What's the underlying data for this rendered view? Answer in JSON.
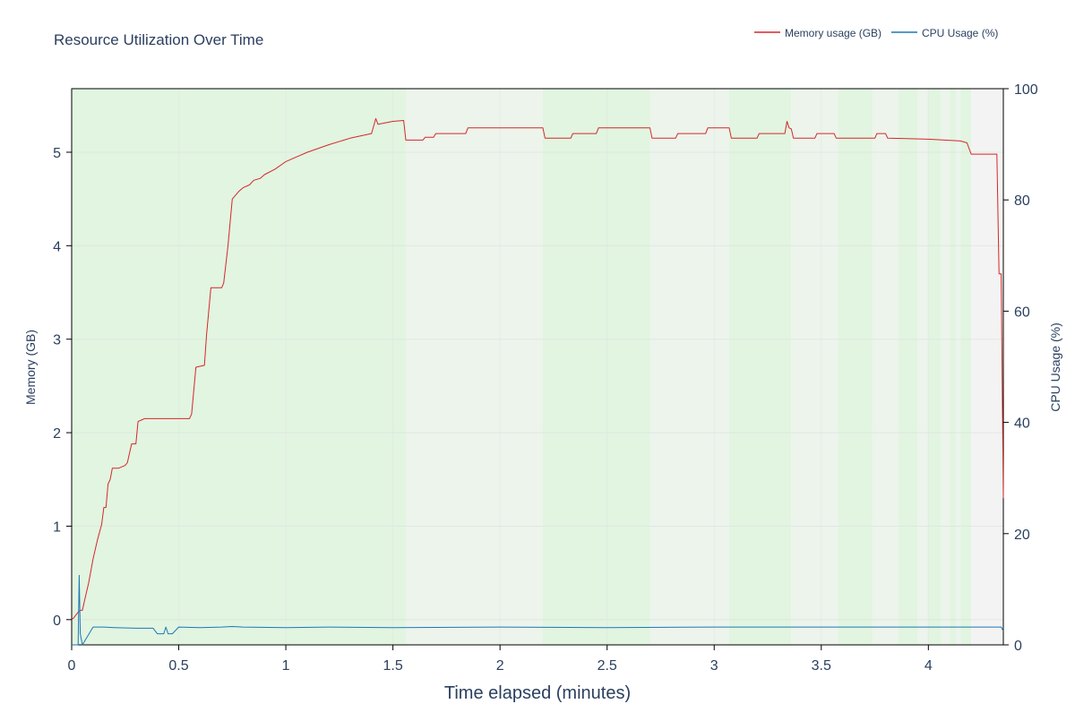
{
  "chart_data": {
    "type": "line",
    "title": "Resource Utilization Over Time",
    "xlabel": "Time elapsed (minutes)",
    "ylabel": "Memory (GB)",
    "y2label": "CPU Usage (%)",
    "xlim": [
      0,
      4.35
    ],
    "ylim": [
      -0.27,
      5.68
    ],
    "y2lim": [
      0,
      100
    ],
    "x_ticks": [
      0,
      0.5,
      1,
      1.5,
      2,
      2.5,
      3,
      3.5,
      4
    ],
    "y_ticks": [
      0,
      1,
      2,
      3,
      4,
      5
    ],
    "y2_ticks": [
      0,
      20,
      40,
      60,
      80,
      100
    ],
    "grid": true,
    "legend_position": "top-right",
    "series": [
      {
        "name": "Memory usage (GB)",
        "axis": "left",
        "color": "#d62728",
        "x": [
          0,
          0.01,
          0.02,
          0.03,
          0.04,
          0.05,
          0.06,
          0.08,
          0.1,
          0.12,
          0.14,
          0.15,
          0.16,
          0.17,
          0.18,
          0.19,
          0.2,
          0.22,
          0.25,
          0.26,
          0.28,
          0.3,
          0.31,
          0.33,
          0.34,
          0.35,
          0.37,
          0.4,
          0.45,
          0.5,
          0.55,
          0.56,
          0.58,
          0.62,
          0.63,
          0.65,
          0.7,
          0.71,
          0.73,
          0.75,
          0.78,
          0.8,
          0.83,
          0.85,
          0.88,
          0.9,
          0.95,
          1.0,
          1.05,
          1.1,
          1.2,
          1.3,
          1.4,
          1.42,
          1.43,
          1.5,
          1.55,
          1.56,
          1.6,
          1.64,
          1.65,
          1.69,
          1.7,
          1.84,
          1.85,
          2.2,
          2.21,
          2.33,
          2.34,
          2.45,
          2.46,
          2.7,
          2.71,
          2.82,
          2.83,
          2.96,
          2.97,
          3.07,
          3.08,
          3.2,
          3.21,
          3.33,
          3.34,
          3.35,
          3.36,
          3.37,
          3.47,
          3.48,
          3.56,
          3.57,
          3.75,
          3.76,
          3.8,
          3.81,
          4.0,
          4.15,
          4.18,
          4.2,
          4.21,
          4.32,
          4.33,
          4.34,
          4.35
        ],
        "values": [
          0.0,
          0.02,
          0.05,
          0.08,
          0.1,
          0.1,
          0.2,
          0.4,
          0.65,
          0.85,
          1.02,
          1.2,
          1.2,
          1.45,
          1.5,
          1.62,
          1.62,
          1.62,
          1.65,
          1.68,
          1.88,
          1.88,
          2.12,
          2.14,
          2.15,
          2.15,
          2.15,
          2.15,
          2.15,
          2.15,
          2.15,
          2.2,
          2.7,
          2.72,
          3.05,
          3.55,
          3.55,
          3.6,
          4.0,
          4.5,
          4.58,
          4.62,
          4.65,
          4.7,
          4.72,
          4.76,
          4.82,
          4.9,
          4.95,
          5.0,
          5.08,
          5.15,
          5.2,
          5.36,
          5.3,
          5.33,
          5.34,
          5.13,
          5.13,
          5.13,
          5.16,
          5.16,
          5.2,
          5.2,
          5.26,
          5.26,
          5.15,
          5.15,
          5.2,
          5.2,
          5.26,
          5.26,
          5.15,
          5.15,
          5.2,
          5.2,
          5.26,
          5.26,
          5.15,
          5.15,
          5.2,
          5.2,
          5.33,
          5.26,
          5.25,
          5.15,
          5.15,
          5.2,
          5.2,
          5.15,
          5.15,
          5.2,
          5.2,
          5.15,
          5.14,
          5.12,
          5.1,
          4.98,
          4.98,
          4.98,
          3.7,
          3.7,
          1.3
        ]
      },
      {
        "name": "CPU Usage (%)",
        "axis": "right",
        "color": "#1f77b4",
        "x": [
          0,
          0.03,
          0.035,
          0.04,
          0.05,
          0.1,
          0.15,
          0.2,
          0.3,
          0.38,
          0.4,
          0.43,
          0.44,
          0.45,
          0.47,
          0.5,
          0.6,
          0.7,
          0.75,
          0.8,
          1.0,
          1.2,
          1.5,
          2.0,
          2.5,
          3.0,
          3.5,
          4.0,
          4.3,
          4.34,
          4.35
        ],
        "values": [
          0,
          0,
          12.5,
          2,
          0,
          3.2,
          3.2,
          3.1,
          3.0,
          3.0,
          2.0,
          2.0,
          3.2,
          2.0,
          2.0,
          3.2,
          3.1,
          3.2,
          3.3,
          3.2,
          3.1,
          3.2,
          3.1,
          3.2,
          3.1,
          3.2,
          3.2,
          3.2,
          3.2,
          3.2,
          2.5
        ]
      }
    ],
    "background_bands": [
      {
        "start": 0.0,
        "end": 1.56,
        "color": "#e1f5e1"
      },
      {
        "start": 1.56,
        "end": 2.2,
        "color": "#ecf4ec"
      },
      {
        "start": 2.2,
        "end": 2.7,
        "color": "#e1f5e1"
      },
      {
        "start": 2.7,
        "end": 3.07,
        "color": "#ecf4ec"
      },
      {
        "start": 3.07,
        "end": 3.36,
        "color": "#e1f5e1"
      },
      {
        "start": 3.36,
        "end": 3.58,
        "color": "#ecf4ec"
      },
      {
        "start": 3.58,
        "end": 3.74,
        "color": "#e1f5e1"
      },
      {
        "start": 3.74,
        "end": 3.86,
        "color": "#ecf4ec"
      },
      {
        "start": 3.86,
        "end": 3.95,
        "color": "#e1f5e1"
      },
      {
        "start": 3.95,
        "end": 4.0,
        "color": "#ecf4ec"
      },
      {
        "start": 4.0,
        "end": 4.06,
        "color": "#e1f5e1"
      },
      {
        "start": 4.06,
        "end": 4.1,
        "color": "#ecf4ec"
      },
      {
        "start": 4.1,
        "end": 4.13,
        "color": "#e1f5e1"
      },
      {
        "start": 4.13,
        "end": 4.15,
        "color": "#ecf4ec"
      },
      {
        "start": 4.15,
        "end": 4.2,
        "color": "#e1f5e1"
      },
      {
        "start": 4.2,
        "end": 4.35,
        "color": "#f3f3f3"
      }
    ]
  }
}
